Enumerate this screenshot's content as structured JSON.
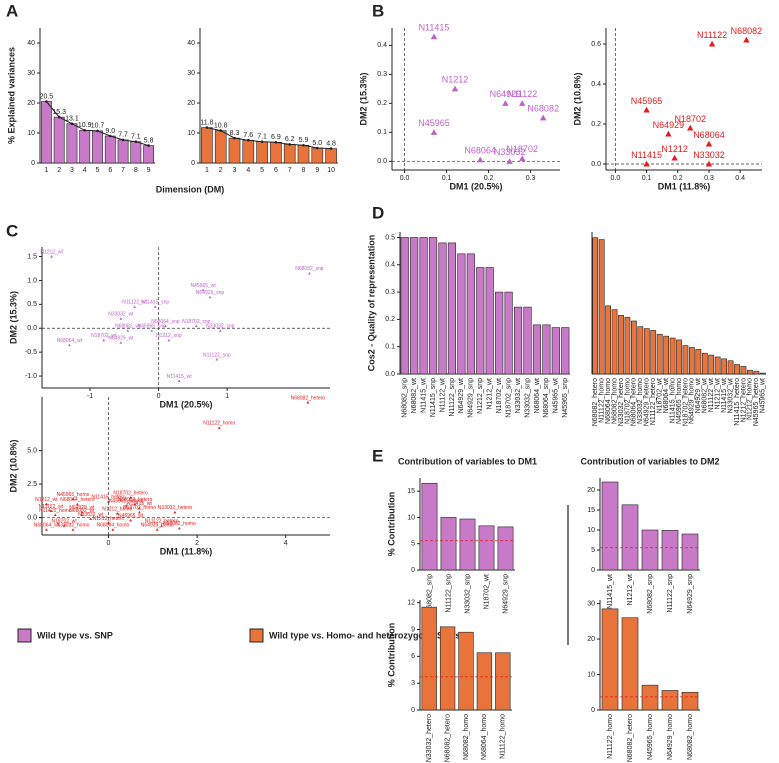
{
  "panels": [
    "A",
    "B",
    "C",
    "D",
    "E"
  ],
  "legend": [
    {
      "name": "Wild type vs. SNP",
      "color": "#c87ac8"
    },
    {
      "name": "Wild type vs. Homo- and heterozygous SNPs",
      "color": "#e8743b"
    }
  ],
  "chart_data": [
    {
      "type": "bar",
      "ylabel": "% Explained variances",
      "xlabel": "Dimension (DM)",
      "categories": [
        "1",
        "2",
        "3",
        "4",
        "5",
        "6",
        "7",
        "8",
        "9"
      ],
      "values": [
        20.5,
        15.3,
        13.1,
        10.9,
        10.7,
        9.0,
        7.7,
        7.1,
        5.8
      ],
      "value_labels": [
        "20.5",
        "15.3",
        "13.1",
        "10.9",
        "10.7",
        "9.0",
        "7.7",
        "7.1",
        "5.8"
      ],
      "color": "#c87ac8",
      "line": true,
      "ylim": [
        0,
        45
      ],
      "yticks": [
        0,
        10,
        20,
        30,
        40
      ]
    },
    {
      "type": "bar",
      "categories": [
        "1",
        "2",
        "3",
        "4",
        "5",
        "6",
        "7",
        "8",
        "9",
        "10"
      ],
      "values": [
        11.8,
        10.8,
        8.3,
        7.6,
        7.1,
        6.9,
        6.2,
        5.9,
        5.0,
        4.8
      ],
      "value_labels": [
        "11.8",
        "10.8",
        "8.3",
        "7.6",
        "7.1",
        "6.9",
        "6.2",
        "5.9",
        "5.0",
        "4.8"
      ],
      "color": "#e8743b",
      "line": true,
      "ylim": [
        0,
        45
      ],
      "yticks": [
        0,
        10,
        20,
        30,
        40
      ]
    },
    {
      "type": "scatter",
      "xlabel": "DM1 (20.5%)",
      "ylabel": "DM2 (15.3%)",
      "color": "#c061cb",
      "labels": [
        "N11415",
        "N1212",
        "N11122",
        "N64929",
        "N68082",
        "N45965",
        "N68064",
        "N33032",
        "N18702"
      ],
      "x": [
        0.07,
        0.12,
        0.28,
        0.24,
        0.33,
        0.07,
        0.18,
        0.25,
        0.28
      ],
      "values": [
        0.43,
        0.25,
        0.2,
        0.2,
        0.15,
        0.1,
        0.005,
        0.0,
        0.01
      ],
      "xlim": [
        -0.03,
        0.37
      ],
      "ylim": [
        -0.03,
        0.46
      ],
      "xticks": [
        {
          "value": 0,
          "label": "0.0"
        },
        0.1,
        0.2,
        0.3
      ],
      "yticks": [
        {
          "value": 0,
          "label": "0.0"
        },
        0.1,
        0.2,
        0.3,
        0.4
      ]
    },
    {
      "type": "scatter",
      "xlabel": "DM1 (11.8%)",
      "ylabel": "DM2 (10.8%)",
      "color": "#e41a1c",
      "labels": [
        "N11122",
        "N68082",
        "N45965",
        "N18702",
        "N64929",
        "N68064",
        "N33032",
        "N1212",
        "N11415"
      ],
      "x": [
        0.31,
        0.42,
        0.1,
        0.24,
        0.17,
        0.3,
        0.3,
        0.19,
        0.1
      ],
      "values": [
        0.6,
        0.62,
        0.27,
        0.18,
        0.15,
        0.1,
        0.0,
        0.03,
        0.0
      ],
      "xlim": [
        -0.03,
        0.47
      ],
      "ylim": [
        -0.03,
        0.68
      ],
      "xticks": [
        {
          "value": 0,
          "label": "0.0"
        },
        0.1,
        0.2,
        0.3,
        0.4
      ],
      "yticks": [
        {
          "value": 0,
          "label": "0.0"
        },
        {
          "value": 0.2,
          "label": "0.2"
        },
        {
          "value": 0.4,
          "label": "0.4"
        },
        {
          "value": 0.6,
          "label": "0.6"
        }
      ]
    },
    {
      "type": "scatter",
      "xlabel": "DM1 (20.5%)",
      "ylabel": "DM2 (15.3%)",
      "color": "#c061cb",
      "labels": [
        "N1212_wt",
        "N68082_snp",
        "N45965_wt",
        "N64929_snp",
        "N11415_snp",
        "N11122_wt",
        "N33032_wt",
        "N18702_snp",
        "N68064_snp",
        "N33032_snp",
        "N68082_wt",
        "N45965_snp",
        "N64929_wt",
        "N18702_wt",
        "N1212_snp",
        "N11122_snp",
        "N68064_wt",
        "N11415_wt"
      ],
      "x": [
        -1.56,
        2.2,
        0.65,
        0.75,
        -0.05,
        -0.35,
        -0.55,
        0.55,
        0.1,
        0.9,
        -0.45,
        -0.1,
        -0.55,
        -0.8,
        0.15,
        0.85,
        -1.3,
        0.3
      ],
      "values": [
        1.5,
        1.15,
        0.8,
        0.65,
        0.45,
        0.45,
        0.2,
        0.05,
        0.05,
        -0.05,
        -0.05,
        -0.05,
        -0.3,
        -0.25,
        -0.25,
        -0.65,
        -0.35,
        -1.1
      ],
      "xlim": [
        -1.7,
        2.5
      ],
      "ylim": [
        -1.25,
        1.7
      ],
      "xticks": [
        -1,
        0,
        1
      ],
      "yticks": [
        {
          "value": -1,
          "label": "-1.0"
        },
        -0.5,
        {
          "value": 0,
          "label": "0.0"
        },
        0.5,
        {
          "value": 1,
          "label": "1.0"
        },
        1.5
      ]
    },
    {
      "type": "scatter",
      "xlabel": "DM1 (11.8%)",
      "ylabel": "DM2 (10.8%)",
      "color": "#e41a1c",
      "labels": [
        "N68082_hetero",
        "N11122_homo",
        "N1212_wt",
        "N45965_homo",
        "N68064_hetero",
        "N11122_wt",
        "N64929_wt",
        "N11415_homo",
        "N18702_hetero",
        "N64929_hetero",
        "N11415_hetero",
        "N33032_hetero",
        "N1212_hetero",
        "N68064_homo",
        "N68082_homo",
        "N18702_wt",
        "N68064_wt",
        "N33032_homo",
        "N11122_hetero",
        "N64929_homo",
        "N18702_homo",
        "N11415_wt",
        "N45965_hetero",
        "N33032_wt",
        "N45965_wt",
        "N1212_homo",
        "N68082_wt"
      ],
      "x": [
        4.5,
        2.5,
        -1.4,
        -0.8,
        -0.7,
        -1.3,
        -0.6,
        -1.2,
        0.5,
        0.6,
        0.0,
        1.5,
        0.0,
        0.1,
        1.6,
        -1.0,
        -1.4,
        -0.8,
        1.2,
        1.1,
        0.7,
        0.7,
        0.4,
        -0.4,
        0.5,
        0.2,
        -0.6
      ],
      "values": [
        8.6,
        6.7,
        1.0,
        1.4,
        1.0,
        0.5,
        0.4,
        0.2,
        1.5,
        1.0,
        1.2,
        0.4,
        -0.4,
        -0.9,
        -0.8,
        -0.6,
        -0.9,
        -0.9,
        -0.6,
        -0.9,
        0.4,
        0.7,
        0.9,
        -0.1,
        -0.2,
        0.3,
        0.2
      ],
      "xlim": [
        -1.5,
        5.0
      ],
      "ylim": [
        -1.3,
        9.0
      ],
      "xticks": [
        0,
        2,
        4
      ],
      "yticks": [
        {
          "value": 0,
          "label": "0.0"
        },
        2.5,
        {
          "value": 5,
          "label": "5.0"
        }
      ]
    },
    {
      "type": "bar",
      "ylabel": "Cos2 - Quality of representation",
      "color": "#c87ac8",
      "categories": [
        "N68082_snp",
        "N68082_wt",
        "N11415_wt",
        "N11415_snp",
        "N11122_wt",
        "N11122_snp",
        "N64929_wt",
        "N64929_snp",
        "N1212_snp",
        "N1212_wt",
        "N18702_wt",
        "N18702_snp",
        "N33032_wt",
        "N33032_snp",
        "N68064_wt",
        "N68064_snp",
        "N45965_wt",
        "N45965_snp"
      ],
      "values": [
        0.5,
        0.5,
        0.5,
        0.5,
        0.48,
        0.48,
        0.44,
        0.44,
        0.39,
        0.39,
        0.3,
        0.3,
        0.245,
        0.245,
        0.18,
        0.18,
        0.17,
        0.17
      ],
      "ylim": [
        0,
        0.52
      ],
      "yticks": [
        {
          "value": 0,
          "label": "0.0"
        },
        0.1,
        0.2,
        0.3,
        0.4,
        0.5
      ]
    },
    {
      "type": "bar",
      "color": "#e8743b",
      "categories": [
        "N68082_hetero",
        "N11122_homo",
        "N68064_homo",
        "N68082_homo",
        "N33032_hetero",
        "N18702_homo",
        "N68064_hetero",
        "N33032_homo",
        "N64929_hetero",
        "N11122_hetero",
        "N18702_wt",
        "N68064_wt",
        "N11415_homo",
        "N45965_homo",
        "N18702_hetero",
        "N64929_homo",
        "N64929_wt",
        "N68082_wt",
        "N11122_wt",
        "N1212_wt",
        "N11415_wt",
        "N33032_wt",
        "N11415_hetero",
        "N1212_hetero",
        "N1212_homo",
        "N45965_hetero",
        "N45965_wt"
      ],
      "values": [
        0.72,
        0.71,
        0.36,
        0.34,
        0.31,
        0.3,
        0.28,
        0.25,
        0.24,
        0.23,
        0.21,
        0.2,
        0.19,
        0.18,
        0.15,
        0.14,
        0.13,
        0.11,
        0.1,
        0.09,
        0.08,
        0.07,
        0.05,
        0.04,
        0.02,
        0.015,
        0.005
      ],
      "ylim": [
        0,
        0.75
      ]
    },
    {
      "type": "bar",
      "title": "Contribution of variables to DM1",
      "ylabel": "% Contribution",
      "color": "#c87ac8",
      "categories": [
        "N68082_snp",
        "N11122_snp",
        "N33032_snp",
        "N18702_wt",
        "N64929_snp"
      ],
      "values": [
        16.5,
        10,
        9.7,
        8.4,
        8.2
      ],
      "reference_line": 5.56,
      "ylim": [
        0,
        17.5
      ],
      "yticks": [
        0,
        5,
        10,
        15
      ]
    },
    {
      "type": "bar",
      "title": "Contribution of variables to DM2",
      "color": "#c87ac8",
      "categories": [
        "N11415_wt",
        "N1212_wt",
        "N68082_snp",
        "N11122_snp",
        "N64929_snp"
      ],
      "values": [
        22,
        16.3,
        10,
        9.9,
        9
      ],
      "reference_line": 5.56,
      "ylim": [
        0,
        23
      ],
      "yticks": [
        0,
        5,
        10,
        15,
        20
      ]
    },
    {
      "type": "bar",
      "ylabel": "% Contribution",
      "color": "#e8743b",
      "categories": [
        "N33032_hetero",
        "N68082_hetero",
        "N68082_homo",
        "N68064_homo",
        "N11122_homo"
      ],
      "values": [
        11.5,
        9.3,
        8.7,
        6.4,
        6.4
      ],
      "reference_line": 3.7,
      "ylim": [
        0,
        12.3
      ],
      "yticks": [
        0,
        3,
        6,
        9,
        12
      ]
    },
    {
      "type": "bar",
      "color": "#e8743b",
      "categories": [
        "N11122_homo",
        "N68082_hetero",
        "N45965_homo",
        "N64929_homo",
        "N68082_homo"
      ],
      "values": [
        28.5,
        26,
        7,
        5.5,
        5
      ],
      "reference_line": 3.7,
      "ylim": [
        0,
        31
      ],
      "yticks": [
        0,
        10,
        20,
        30
      ]
    }
  ]
}
